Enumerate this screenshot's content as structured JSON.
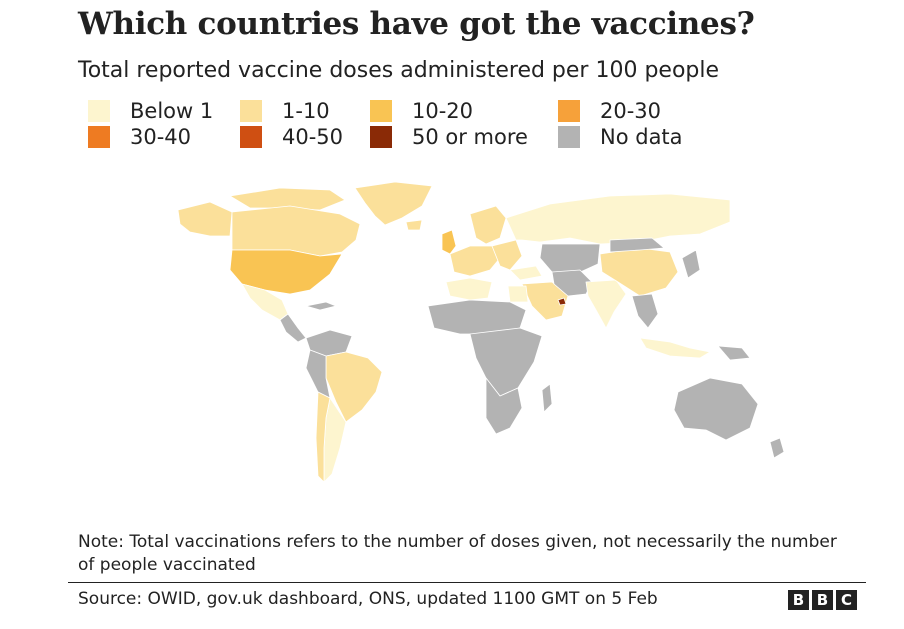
{
  "header": {
    "title": "Which countries have got the vaccines?",
    "subtitle": "Total reported vaccine doses administered per 100 people"
  },
  "legend": {
    "items": [
      {
        "label": "Below 1",
        "color": "#fdf5cf"
      },
      {
        "label": "1-10",
        "color": "#fbe09a"
      },
      {
        "label": "10-20",
        "color": "#f9c453"
      },
      {
        "label": "20-30",
        "color": "#f6a13a"
      },
      {
        "label": "30-40",
        "color": "#ee7b22"
      },
      {
        "label": "40-50",
        "color": "#cf4f12"
      },
      {
        "label": "50 or more",
        "color": "#8a2a06"
      },
      {
        "label": "No data",
        "color": "#b3b3b3"
      }
    ]
  },
  "footer": {
    "note": "Note: Total vaccinations refers to the number of doses given, not necessarily the number of people vaccinated",
    "source": "Source: OWID, gov.uk dashboard, ONS, updated 1100 GMT on 5 Feb",
    "logo_letters": [
      "B",
      "B",
      "C"
    ]
  },
  "colors": {
    "below_1": "#fdf5cf",
    "range_1_10": "#fbe09a",
    "range_10_20": "#f9c453",
    "range_20_30": "#f6a13a",
    "range_30_40": "#ee7b22",
    "range_40_50": "#cf4f12",
    "range_50_plus": "#8a2a06",
    "no_data": "#b3b3b3"
  }
}
